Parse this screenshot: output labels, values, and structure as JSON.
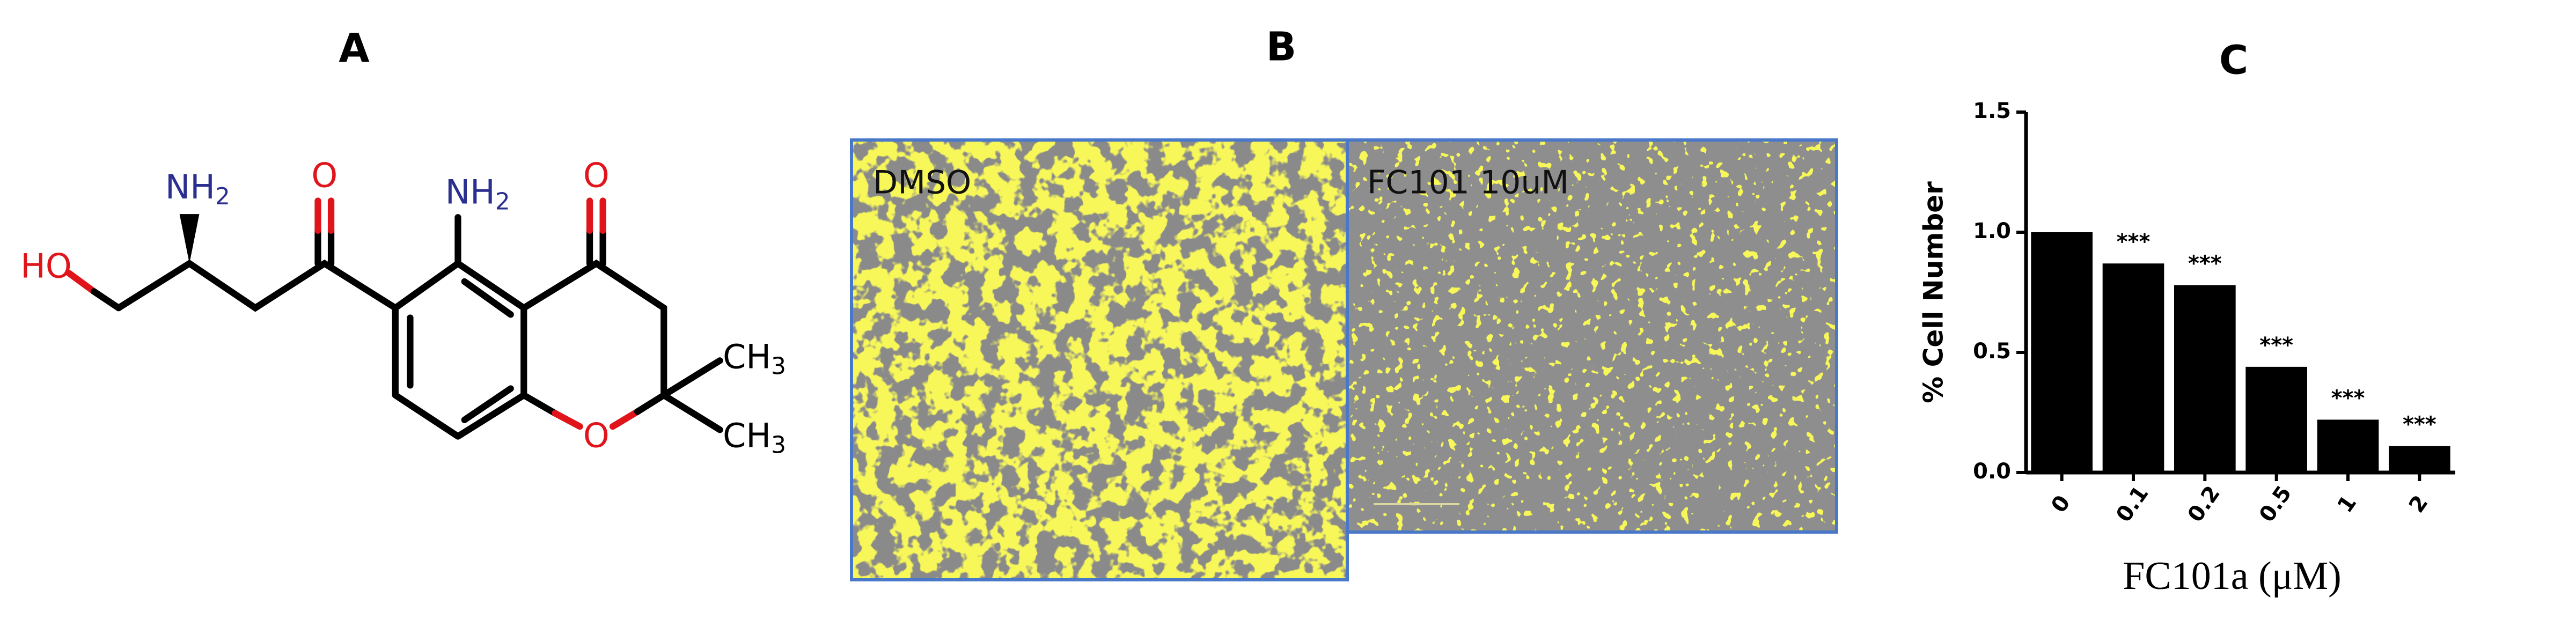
{
  "panel_labels": [
    "A",
    "B",
    "C"
  ],
  "molecule": {
    "atoms": [
      {
        "text": "HO",
        "color": "#e0151b"
      },
      {
        "text": "NH",
        "sub": "2",
        "color": "#2b2f8f"
      },
      {
        "text": "O",
        "color": "#e0151b"
      },
      {
        "text": "NH",
        "sub": "2",
        "color": "#2b2f8f"
      },
      {
        "text": "O",
        "color": "#e0151b"
      },
      {
        "text": "CH",
        "sub": "3",
        "color": "#000000"
      },
      {
        "text": "O",
        "color": "#e0151b"
      },
      {
        "text": "CH",
        "sub": "3",
        "color": "#000000"
      }
    ]
  },
  "microscopy": {
    "labels": [
      "DMSO",
      "FC101 10uM"
    ]
  },
  "chart_data": {
    "type": "bar",
    "categories": [
      "0",
      "0.1",
      "0.2",
      "0.5",
      "1",
      "2"
    ],
    "values": [
      1.0,
      0.87,
      0.78,
      0.44,
      0.22,
      0.11
    ],
    "significance": [
      null,
      "***",
      "***",
      "***",
      "***",
      "***"
    ],
    "color": "#000000",
    "ylim": [
      0,
      1.5
    ],
    "yticks": [
      {
        "value": 0,
        "label": "0.0"
      },
      {
        "value": 0.5,
        "label": "0.5"
      },
      {
        "value": 1,
        "label": "1.0"
      },
      {
        "value": 1.5,
        "label": "1.5"
      }
    ],
    "y_label": "% Cell Number",
    "x_label": "FC101a (μM)"
  }
}
